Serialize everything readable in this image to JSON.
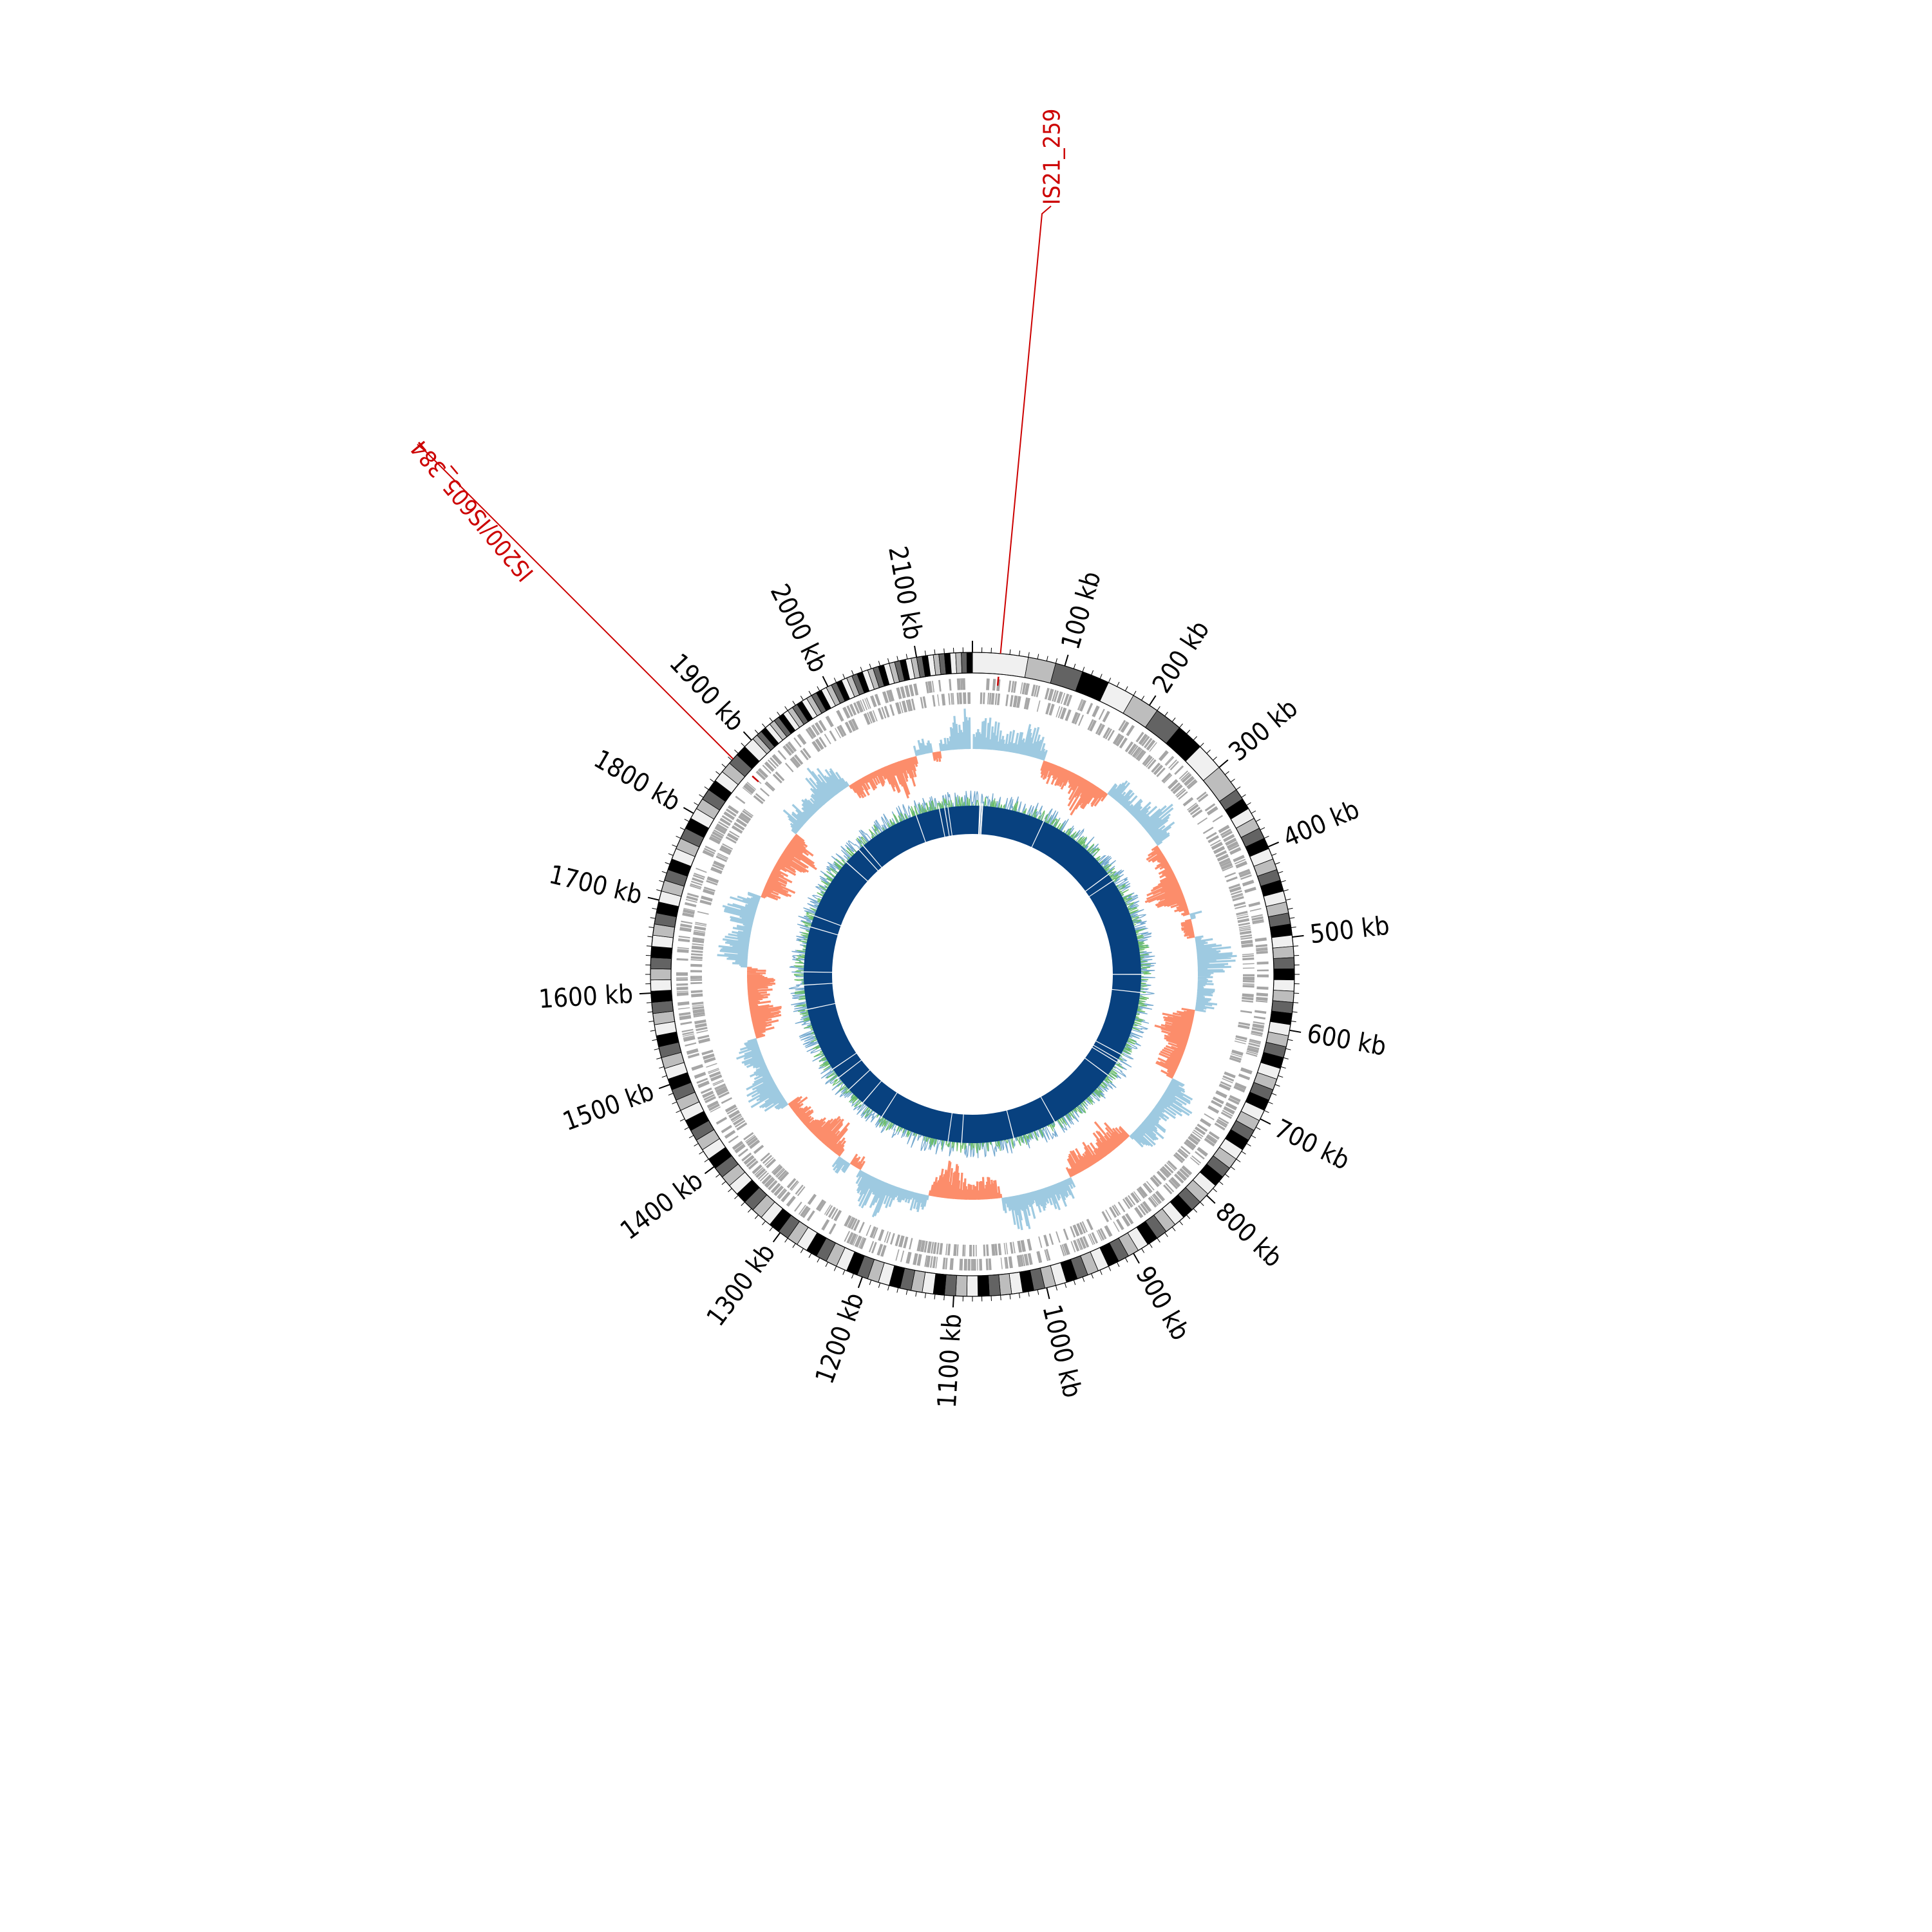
{
  "genome": {
    "length_kb": 2160,
    "tick_labels": [
      "100 kb",
      "200 kb",
      "300 kb",
      "400 kb",
      "500 kb",
      "600 kb",
      "700 kb",
      "800 kb",
      "900 kb",
      "1000 kb",
      "1100 kb",
      "1200 kb",
      "1300 kb",
      "1400 kb",
      "1500 kb",
      "1600 kb",
      "1700 kb",
      "1800 kb",
      "1900 kb",
      "2000 kb",
      "2100 kb"
    ],
    "major_tick_kb": [
      100,
      200,
      300,
      400,
      500,
      600,
      700,
      800,
      900,
      1000,
      1100,
      1200,
      1300,
      1400,
      1500,
      1600,
      1700,
      1800,
      1900,
      2000,
      2100
    ],
    "minor_tick_step_kb": 10
  },
  "insertion_sequences": [
    {
      "label": "IS21_259",
      "position_kb": 30
    },
    {
      "label": "IS200/IS605_384",
      "position_kb": 1872
    }
  ],
  "colors": {
    "annotation": "#cc0000",
    "genes": "#a6a6a6",
    "gc_skew_pos": "#9ecae1",
    "gc_skew_neg": "#fc8d6b",
    "gc_content_a": "#74a9cf",
    "gc_content_b": "#6dbf6a",
    "inner_ring": "#08417f"
  }
}
